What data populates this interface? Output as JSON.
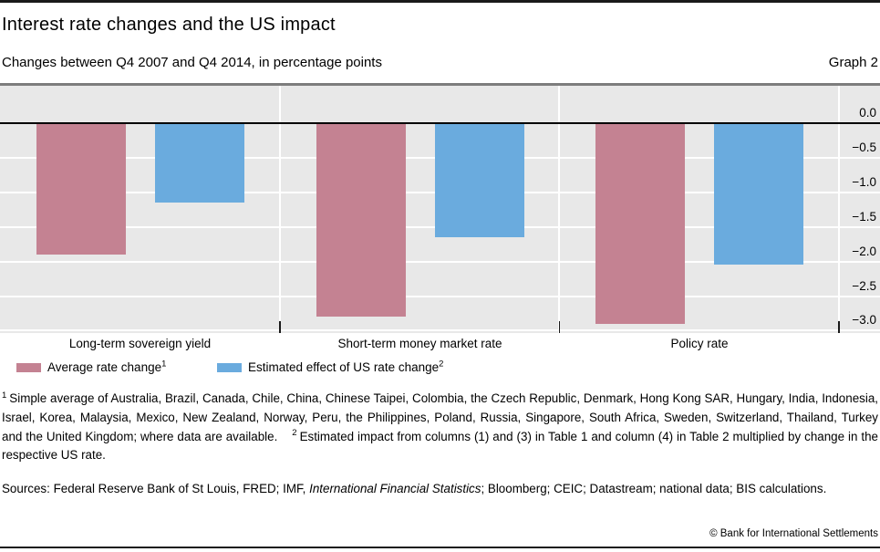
{
  "page": {
    "title": "Interest rate changes and the US impact",
    "subtitle": "Changes between Q4 2007 and Q4 2014, in percentage points",
    "graph_label": "Graph 2"
  },
  "chart_data": {
    "type": "bar",
    "categories": [
      "Long-term sovereign yield",
      "Short-term money market rate",
      "Policy rate"
    ],
    "series": [
      {
        "name": "Average rate change",
        "footnote_marker": "1",
        "color": "#c48292",
        "values": [
          -1.9,
          -2.8,
          -2.9
        ]
      },
      {
        "name": "Estimated effect of US rate change",
        "footnote_marker": "2",
        "color": "#6aabde",
        "values": [
          -1.15,
          -1.65,
          -2.05
        ]
      }
    ],
    "y_ticks": [
      "0.0",
      "−0.5",
      "−1.0",
      "−1.5",
      "−2.0",
      "−2.5",
      "−3.0"
    ],
    "y_tick_values": [
      0,
      -0.5,
      -1.0,
      -1.5,
      -2.0,
      -2.5,
      -3.0
    ],
    "ylim": [
      -3.0,
      0.53
    ],
    "grid": "horizontal white gridlines on gray panel, ticks on right",
    "legend_position": "below-left"
  },
  "footnotes": {
    "fn1_marker": "1",
    "fn1_text": "Simple average of Australia, Brazil, Canada, Chile, China, Chinese Taipei, Colombia, the Czech Republic, Denmark, Hong Kong SAR, Hungary, India, Indonesia, Israel, Korea, Malaysia, Mexico, New Zealand, Norway, Peru, the Philippines, Poland, Russia, Singapore, South Africa, Sweden, Switzerland, Thailand, Turkey and the United Kingdom; where data are available.",
    "fn2_marker": "2",
    "fn2_text": "Estimated impact from columns (1) and (3) in Table 1 and column (4) in Table 2 multiplied by change in the respective US rate."
  },
  "sources": {
    "prefix": "Sources: Federal Reserve Bank of St Louis, FRED; IMF, ",
    "italic": "International Financial Statistics",
    "suffix": "; Bloomberg; CEIC; Datastream; national data; BIS calculations."
  },
  "footer": {
    "copyright": "© Bank for International Settlements"
  },
  "colors": {
    "series1": "#c48292",
    "series2": "#6aabde",
    "plot_bg": "#e8e8e8",
    "gridline": "#ffffff",
    "zero_line": "#000000",
    "plot_top_border": "#7d7d7d"
  }
}
